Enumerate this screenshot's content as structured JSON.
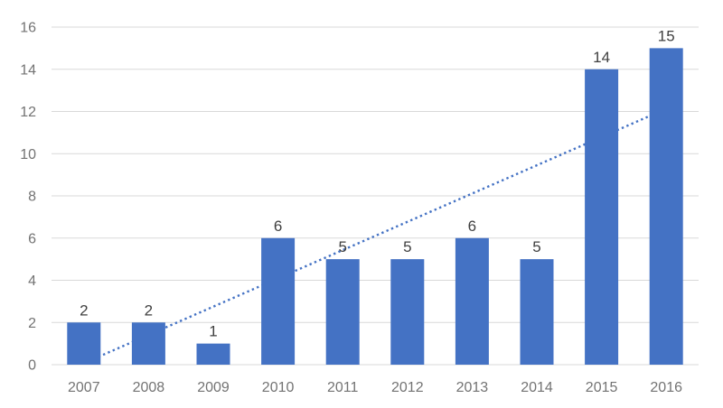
{
  "chart": {
    "background_color": "#FFFFFF"
  },
  "chart_data": {
    "type": "bar",
    "title": "",
    "xlabel": "",
    "ylabel": "",
    "categories": [
      "2007",
      "2008",
      "2009",
      "2010",
      "2011",
      "2012",
      "2013",
      "2014",
      "2015",
      "2016"
    ],
    "values": [
      2,
      2,
      1,
      6,
      5,
      5,
      6,
      5,
      14,
      15
    ],
    "data_labels": [
      "2",
      "2",
      "1",
      "6",
      "5",
      "5",
      "6",
      "5",
      "14",
      "15"
    ],
    "ylim": [
      0,
      16
    ],
    "yticks": [
      0,
      2,
      4,
      6,
      8,
      10,
      12,
      14,
      16
    ],
    "grid": "horizontal",
    "legend": "none",
    "bar_color": "#4472C4",
    "gridline_color": "#D9D9D9",
    "axis_tick_label_color": "#737373",
    "data_label_color": "#404040",
    "trendline": {
      "type": "linear",
      "style": "dotted",
      "color": "#4472C4",
      "start_value": 0.07,
      "end_value": 12.13
    }
  }
}
